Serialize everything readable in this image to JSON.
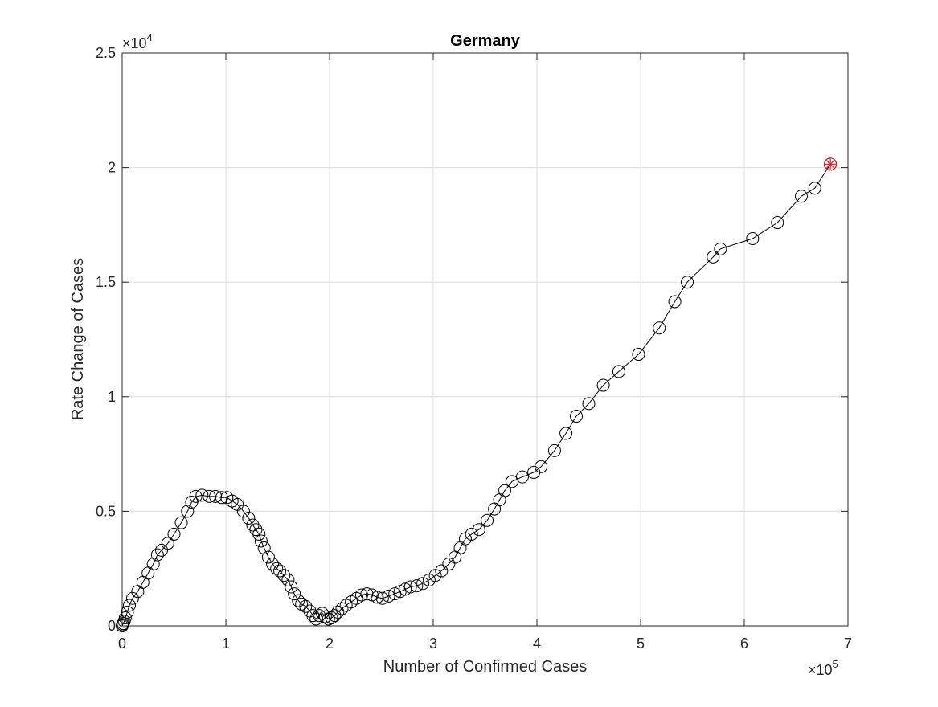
{
  "chart_data": {
    "type": "scatter",
    "title": "Germany",
    "xlabel": "Number of Confirmed Cases",
    "ylabel": "Rate Change of Cases",
    "xlim": [
      0,
      700000
    ],
    "ylim": [
      0,
      25000
    ],
    "x_ticks": [
      0,
      100000,
      200000,
      300000,
      400000,
      500000,
      600000,
      700000
    ],
    "x_tick_labels": [
      "0",
      "1",
      "2",
      "3",
      "4",
      "5",
      "6",
      "7"
    ],
    "y_ticks": [
      0,
      5000,
      10000,
      15000,
      20000,
      25000
    ],
    "y_tick_labels": [
      "0",
      "0.5",
      "1",
      "1.5",
      "2",
      "2.5"
    ],
    "x_multiplier": {
      "base": "×10",
      "exp": "5"
    },
    "y_multiplier": {
      "base": "×10",
      "exp": "4"
    },
    "grid": true,
    "line_color": "#000000",
    "marker": "circle-open",
    "highlight_color": "#d62728",
    "series": [
      {
        "points": [
          [
            0,
            0
          ],
          [
            500,
            50
          ],
          [
            1000,
            100
          ],
          [
            2000,
            200
          ],
          [
            3000,
            350
          ],
          [
            5000,
            600
          ],
          [
            7000,
            900
          ],
          [
            10000,
            1200
          ],
          [
            15000,
            1500
          ],
          [
            20000,
            1900
          ],
          [
            25000,
            2300
          ],
          [
            30000,
            2700
          ],
          [
            34000,
            3100
          ],
          [
            38000,
            3300
          ],
          [
            44000,
            3600
          ],
          [
            50000,
            4000
          ],
          [
            57000,
            4500
          ],
          [
            63000,
            5000
          ],
          [
            67000,
            5400
          ],
          [
            71000,
            5650
          ],
          [
            77000,
            5700
          ],
          [
            84000,
            5650
          ],
          [
            90000,
            5650
          ],
          [
            96000,
            5600
          ],
          [
            101000,
            5600
          ],
          [
            106000,
            5450
          ],
          [
            111000,
            5300
          ],
          [
            117000,
            5000
          ],
          [
            122000,
            4700
          ],
          [
            126000,
            4400
          ],
          [
            129000,
            4200
          ],
          [
            132000,
            4000
          ],
          [
            134000,
            3700
          ],
          [
            137000,
            3400
          ],
          [
            141000,
            3000
          ],
          [
            145000,
            2700
          ],
          [
            149000,
            2500
          ],
          [
            152000,
            2400
          ],
          [
            156000,
            2200
          ],
          [
            160000,
            2000
          ],
          [
            163000,
            1700
          ],
          [
            166000,
            1400
          ],
          [
            170000,
            1100
          ],
          [
            173000,
            950
          ],
          [
            177000,
            850
          ],
          [
            181000,
            650
          ],
          [
            184000,
            450
          ],
          [
            187000,
            300
          ],
          [
            190000,
            450
          ],
          [
            193000,
            550
          ],
          [
            196000,
            400
          ],
          [
            199000,
            300
          ],
          [
            202000,
            350
          ],
          [
            205000,
            450
          ],
          [
            208000,
            600
          ],
          [
            212000,
            750
          ],
          [
            216000,
            900
          ],
          [
            221000,
            1050
          ],
          [
            226000,
            1200
          ],
          [
            231000,
            1350
          ],
          [
            236000,
            1400
          ],
          [
            241000,
            1350
          ],
          [
            246000,
            1250
          ],
          [
            251000,
            1200
          ],
          [
            257000,
            1300
          ],
          [
            263000,
            1400
          ],
          [
            268000,
            1500
          ],
          [
            273000,
            1600
          ],
          [
            278000,
            1700
          ],
          [
            284000,
            1750
          ],
          [
            290000,
            1850
          ],
          [
            296000,
            2000
          ],
          [
            302000,
            2200
          ],
          [
            308000,
            2400
          ],
          [
            315000,
            2700
          ],
          [
            321000,
            3000
          ],
          [
            326000,
            3400
          ],
          [
            331000,
            3800
          ],
          [
            337000,
            4000
          ],
          [
            344000,
            4200
          ],
          [
            352000,
            4600
          ],
          [
            359000,
            5100
          ],
          [
            364000,
            5500
          ],
          [
            369000,
            5900
          ],
          [
            376000,
            6300
          ],
          [
            386000,
            6500
          ],
          [
            397000,
            6700
          ],
          [
            404000,
            6950
          ],
          [
            417000,
            7650
          ],
          [
            428000,
            8400
          ],
          [
            438000,
            9150
          ],
          [
            450000,
            9700
          ],
          [
            464000,
            10500
          ],
          [
            479000,
            11100
          ],
          [
            498000,
            11850
          ],
          [
            518000,
            13000
          ],
          [
            533000,
            14150
          ],
          [
            545000,
            15000
          ],
          [
            570000,
            16100
          ],
          [
            577000,
            16450
          ],
          [
            608000,
            16900
          ],
          [
            632000,
            17600
          ],
          [
            655000,
            18750
          ],
          [
            668000,
            19100
          ],
          [
            683000,
            20150
          ]
        ]
      }
    ],
    "highlight_point": [
      683000,
      20150
    ]
  }
}
